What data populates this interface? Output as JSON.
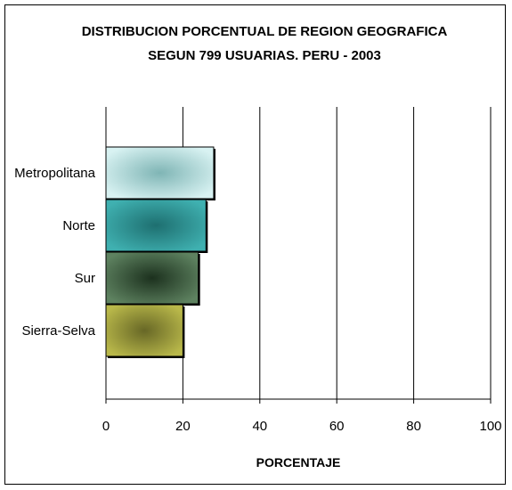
{
  "chart_data": {
    "type": "bar",
    "orientation": "horizontal",
    "title_line1": "DISTRIBUCION PORCENTUAL DE REGION GEOGRAFICA",
    "title_line2": "SEGUN 799 USUARIAS. PERU - 2003",
    "xlabel": "PORCENTAJE",
    "ylabel": "",
    "categories": [
      "Metropolitana",
      "Norte",
      "Sur",
      "Sierra-Selva"
    ],
    "values": [
      28,
      26,
      24,
      20
    ],
    "xlim": [
      0,
      100
    ],
    "xticks": [
      "0",
      "20",
      "40",
      "60",
      "80",
      "100"
    ],
    "grid": "vertical",
    "legend": "none",
    "colors": {
      "bar_edge": [
        "#d8f2f2",
        "#3fb0b0",
        "#5e8260",
        "#b9b84a"
      ],
      "bar_center": [
        "#7fb5b5",
        "#1e6f70",
        "#1c311e",
        "#676726"
      ]
    }
  }
}
